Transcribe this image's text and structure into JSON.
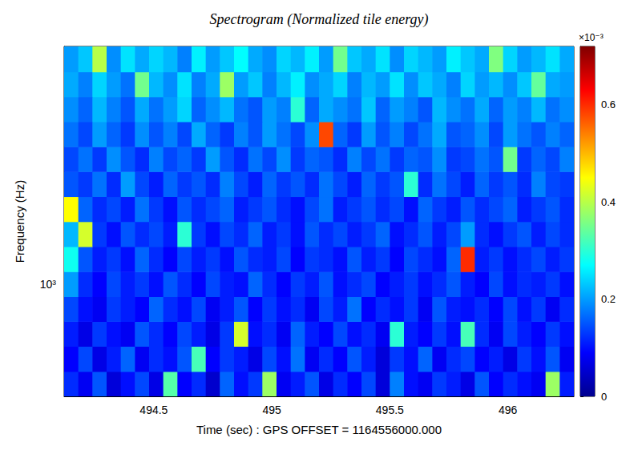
{
  "chart_data": {
    "type": "heatmap",
    "title": "Spectrogram (Normalized tile energy)",
    "x_label": "Time (sec) : GPS OFFSET = 1164556000.000",
    "y_label": "Frequency (Hz)",
    "log": "y",
    "xlim": [
      494.12,
      496.28
    ],
    "xticks": [
      494.5,
      495,
      495.5,
      496
    ],
    "ylim": [
      660,
      2420
    ],
    "yticks": [
      {
        "value": 1000,
        "label": "10³"
      }
    ],
    "time_edges": [
      494.12,
      494.18,
      494.24,
      494.3,
      494.36,
      494.42,
      494.48,
      494.54,
      494.6,
      494.66,
      494.72,
      494.78,
      494.84,
      494.9,
      494.96,
      495.02,
      495.08,
      495.14,
      495.2,
      495.26,
      495.32,
      495.38,
      495.44,
      495.5,
      495.56,
      495.62,
      495.68,
      495.74,
      495.8,
      495.86,
      495.92,
      495.98,
      496.04,
      496.1,
      496.16,
      496.22,
      496.28
    ],
    "freq_edges": [
      660,
      724,
      795,
      872,
      956,
      1049,
      1151,
      1263,
      1386,
      1521,
      1668,
      1830,
      2008,
      2203,
      2420
    ],
    "cells": [
      [
        0.12,
        0.08,
        0.15,
        0.06,
        0.1,
        0.14,
        0.07,
        0.33,
        0.09,
        0.12,
        0.05,
        0.16,
        0.1,
        0.13,
        0.38,
        0.08,
        0.11,
        0.15,
        0.07,
        0.12,
        0.09,
        0.14,
        0.06,
        0.18,
        0.1,
        0.08,
        0.13,
        0.11,
        0.07,
        0.15,
        0.09,
        0.12,
        0.1,
        0.08,
        0.38,
        0.11
      ],
      [
        0.09,
        0.14,
        0.07,
        0.11,
        0.16,
        0.08,
        0.12,
        0.1,
        0.15,
        0.32,
        0.09,
        0.13,
        0.11,
        0.07,
        0.14,
        0.1,
        0.17,
        0.08,
        0.12,
        0.09,
        0.15,
        0.11,
        0.06,
        0.13,
        0.1,
        0.16,
        0.08,
        0.12,
        0.14,
        0.09,
        0.11,
        0.07,
        0.13,
        0.1,
        0.15,
        0.08
      ],
      [
        0.11,
        0.07,
        0.13,
        0.1,
        0.08,
        0.15,
        0.12,
        0.09,
        0.14,
        0.11,
        0.07,
        0.13,
        0.42,
        0.1,
        0.12,
        0.08,
        0.16,
        0.11,
        0.09,
        0.14,
        0.1,
        0.12,
        0.08,
        0.3,
        0.11,
        0.09,
        0.13,
        0.1,
        0.32,
        0.12,
        0.08,
        0.14,
        0.11,
        0.09,
        0.13,
        0.1
      ],
      [
        0.14,
        0.1,
        0.08,
        0.13,
        0.11,
        0.09,
        0.16,
        0.12,
        0.1,
        0.14,
        0.08,
        0.11,
        0.15,
        0.09,
        0.13,
        0.1,
        0.12,
        0.08,
        0.14,
        0.11,
        0.17,
        0.09,
        0.12,
        0.1,
        0.13,
        0.08,
        0.15,
        0.11,
        0.1,
        0.12,
        0.09,
        0.14,
        0.1,
        0.13,
        0.08,
        0.12
      ],
      [
        0.2,
        0.12,
        0.09,
        0.14,
        0.11,
        0.13,
        0.1,
        0.15,
        0.12,
        0.09,
        0.14,
        0.11,
        0.1,
        0.16,
        0.12,
        0.09,
        0.13,
        0.11,
        0.15,
        0.1,
        0.12,
        0.14,
        0.09,
        0.11,
        0.13,
        0.1,
        0.12,
        0.15,
        0.11,
        0.09,
        0.14,
        0.1,
        0.12,
        0.11,
        0.13,
        0.1
      ],
      [
        0.28,
        0.15,
        0.11,
        0.13,
        0.1,
        0.16,
        0.12,
        0.09,
        0.14,
        0.11,
        0.13,
        0.1,
        0.15,
        0.12,
        0.11,
        0.14,
        0.09,
        0.13,
        0.12,
        0.1,
        0.15,
        0.11,
        0.13,
        0.09,
        0.14,
        0.12,
        0.1,
        0.16,
        0.6,
        0.11,
        0.13,
        0.1,
        0.12,
        0.14,
        0.11,
        0.13
      ],
      [
        0.22,
        0.42,
        0.13,
        0.1,
        0.15,
        0.12,
        0.14,
        0.11,
        0.3,
        0.13,
        0.1,
        0.14,
        0.12,
        0.16,
        0.11,
        0.13,
        0.1,
        0.15,
        0.12,
        0.14,
        0.11,
        0.13,
        0.16,
        0.1,
        0.12,
        0.15,
        0.11,
        0.14,
        0.2,
        0.12,
        0.1,
        0.13,
        0.15,
        0.11,
        0.14,
        0.12
      ],
      [
        0.45,
        0.16,
        0.12,
        0.14,
        0.11,
        0.17,
        0.13,
        0.1,
        0.15,
        0.12,
        0.14,
        0.16,
        0.11,
        0.13,
        0.15,
        0.12,
        0.1,
        0.14,
        0.17,
        0.11,
        0.13,
        0.15,
        0.12,
        0.14,
        0.1,
        0.16,
        0.13,
        0.11,
        0.15,
        0.12,
        0.14,
        0.16,
        0.11,
        0.13,
        0.15,
        0.12
      ],
      [
        0.15,
        0.13,
        0.17,
        0.12,
        0.2,
        0.14,
        0.11,
        0.16,
        0.13,
        0.15,
        0.12,
        0.18,
        0.14,
        0.11,
        0.16,
        0.13,
        0.15,
        0.12,
        0.17,
        0.14,
        0.11,
        0.16,
        0.13,
        0.15,
        0.3,
        0.12,
        0.17,
        0.14,
        0.11,
        0.16,
        0.13,
        0.15,
        0.12,
        0.18,
        0.14,
        0.13
      ],
      [
        0.14,
        0.17,
        0.13,
        0.19,
        0.15,
        0.12,
        0.18,
        0.14,
        0.16,
        0.13,
        0.2,
        0.15,
        0.12,
        0.17,
        0.14,
        0.19,
        0.13,
        0.16,
        0.15,
        0.12,
        0.18,
        0.14,
        0.17,
        0.13,
        0.16,
        0.15,
        0.19,
        0.13,
        0.14,
        0.17,
        0.15,
        0.35,
        0.13,
        0.16,
        0.14,
        0.18
      ],
      [
        0.17,
        0.14,
        0.2,
        0.16,
        0.13,
        0.19,
        0.15,
        0.18,
        0.14,
        0.21,
        0.16,
        0.13,
        0.18,
        0.15,
        0.2,
        0.17,
        0.14,
        0.19,
        0.58,
        0.16,
        0.13,
        0.2,
        0.15,
        0.18,
        0.14,
        0.17,
        0.21,
        0.15,
        0.16,
        0.19,
        0.14,
        0.2,
        0.17,
        0.15,
        0.18,
        0.16
      ],
      [
        0.19,
        0.16,
        0.22,
        0.18,
        0.15,
        0.21,
        0.17,
        0.2,
        0.24,
        0.16,
        0.19,
        0.22,
        0.17,
        0.15,
        0.2,
        0.18,
        0.3,
        0.16,
        0.21,
        0.19,
        0.17,
        0.23,
        0.16,
        0.2,
        0.18,
        0.15,
        0.22,
        0.19,
        0.17,
        0.21,
        0.16,
        0.2,
        0.18,
        0.22,
        0.17,
        0.19
      ],
      [
        0.21,
        0.18,
        0.24,
        0.2,
        0.17,
        0.35,
        0.22,
        0.19,
        0.25,
        0.18,
        0.21,
        0.38,
        0.2,
        0.23,
        0.18,
        0.22,
        0.26,
        0.19,
        0.21,
        0.24,
        0.18,
        0.22,
        0.2,
        0.25,
        0.19,
        0.23,
        0.21,
        0.18,
        0.24,
        0.2,
        0.22,
        0.19,
        0.23,
        0.34,
        0.21,
        0.2
      ],
      [
        0.2,
        0.23,
        0.4,
        0.19,
        0.25,
        0.21,
        0.24,
        0.22,
        0.18,
        0.26,
        0.2,
        0.23,
        0.27,
        0.21,
        0.19,
        0.24,
        0.22,
        0.26,
        0.2,
        0.35,
        0.23,
        0.21,
        0.25,
        0.19,
        0.24,
        0.22,
        0.2,
        0.26,
        0.23,
        0.21,
        0.36,
        0.24,
        0.2,
        0.22,
        0.25,
        0.21
      ]
    ],
    "colorbar": {
      "range": [
        0,
        0.72
      ],
      "ticks": [
        0,
        0.2,
        0.4,
        0.6
      ],
      "label": "×10⁻³"
    }
  }
}
